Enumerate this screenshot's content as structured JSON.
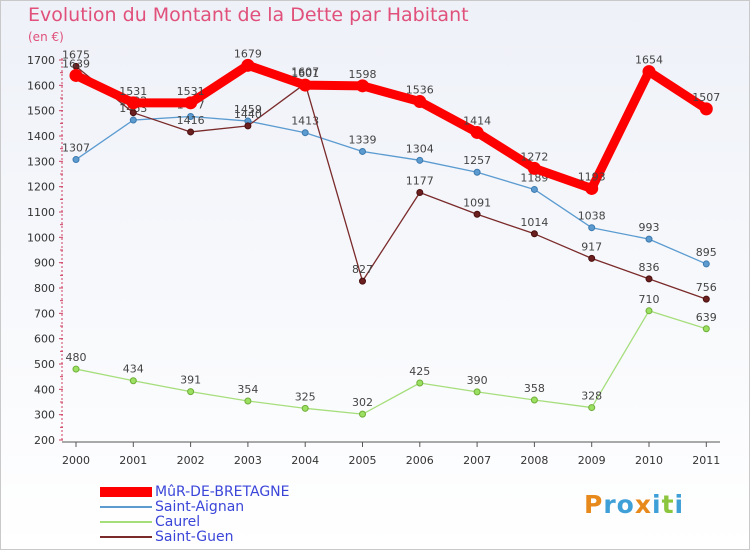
{
  "title": "Evolution du Montant de la Dette par Habitant",
  "subtitle": "(en €)",
  "logo": {
    "text": "Proxiti",
    "letters": [
      {
        "ch": "P",
        "color": "#e8891c"
      },
      {
        "ch": "r",
        "color": "#3fa0d8"
      },
      {
        "ch": "o",
        "color": "#3fa0d8"
      },
      {
        "ch": "x",
        "color": "#e8891c"
      },
      {
        "ch": "i",
        "color": "#3fa0d8"
      },
      {
        "ch": "t",
        "color": "#8cc63f"
      },
      {
        "ch": "i",
        "color": "#3fa0d8"
      }
    ]
  },
  "chart_data": {
    "type": "line",
    "title": "Evolution du Montant de la Dette par Habitant",
    "ylabel": "(en €)",
    "x": [
      "2000",
      "2001",
      "2002",
      "2003",
      "2004",
      "2005",
      "2006",
      "2007",
      "2008",
      "2009",
      "2010",
      "2011"
    ],
    "yticks": [
      200,
      300,
      400,
      500,
      600,
      700,
      800,
      900,
      1000,
      1100,
      1200,
      1300,
      1400,
      1500,
      1600,
      1700
    ],
    "ylim": [
      200,
      1700
    ],
    "grid": false,
    "legend_position": "bottom-left",
    "series": [
      {
        "name": "Saint-Aignan",
        "color": "#5b9bd0",
        "values": [
          1307,
          1463,
          1477,
          1459,
          1413,
          1339,
          1304,
          1257,
          1189,
          1038,
          993,
          895
        ]
      },
      {
        "name": "Caurel",
        "color": "#a6de7c",
        "values": [
          480,
          434,
          391,
          354,
          325,
          302,
          425,
          390,
          358,
          328,
          710,
          639
        ]
      },
      {
        "name": "Saint-Guen",
        "color": "#7a2a2a",
        "values": [
          1675,
          1492,
          1416,
          1440,
          1607,
          827,
          1177,
          1091,
          1014,
          917,
          836,
          756
        ]
      },
      {
        "name": "MûR-DE-BRETAGNE",
        "color": "#ff0000",
        "values": [
          1639,
          1531,
          1531,
          1679,
          1601,
          1598,
          1536,
          1414,
          1272,
          1193,
          1654,
          1507
        ]
      }
    ],
    "legend_order": [
      "MûR-DE-BRETAGNE",
      "Saint-Aignan",
      "Caurel",
      "Saint-Guen"
    ]
  }
}
